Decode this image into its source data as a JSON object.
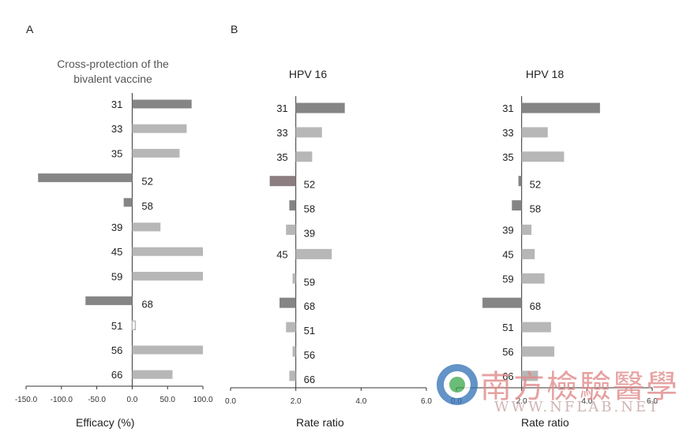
{
  "panels": {
    "a_label": "A",
    "b_label": "B"
  },
  "watermark": {
    "title": "南方檢驗醫學",
    "url": "WWW.NFLAB.NET"
  },
  "colors": {
    "dark_bar": "#858585",
    "light_bar": "#b7b7b7",
    "dark_bar_b": "#8c7d80",
    "axis": "#333333",
    "watermark": "#e08a8a"
  },
  "chart_data": [
    {
      "type": "bar",
      "orientation": "horizontal",
      "title": "Cross-protection of the bivalent vaccine",
      "title_lines": [
        "Cross-protection of the",
        "bivalent vaccine"
      ],
      "xlabel": "Efficacy (%)",
      "xlim": [
        -150,
        100
      ],
      "xticks": [
        "-150.0",
        "-100.0",
        "-50.0",
        "0.0",
        "50.0",
        "100.0"
      ],
      "baseline": 0,
      "categories": [
        "31",
        "33",
        "35",
        "52",
        "58",
        "39",
        "45",
        "59",
        "68",
        "51",
        "56",
        "66"
      ],
      "values": [
        84,
        77,
        67,
        -133,
        -12,
        40,
        100,
        100,
        -66,
        4,
        100,
        57
      ],
      "bar_style": [
        "dark",
        "light",
        "light",
        "dark",
        "dark",
        "light",
        "light",
        "light",
        "dark",
        "outline",
        "light",
        "light"
      ]
    },
    {
      "type": "bar",
      "orientation": "horizontal",
      "title": "HPV 16",
      "xlabel": "Rate ratio",
      "xlim": [
        0,
        6
      ],
      "xticks": [
        "0.0",
        "2.0",
        "4.0",
        "6.0"
      ],
      "baseline": 2,
      "categories": [
        "31",
        "33",
        "35",
        "52",
        "58",
        "39",
        "45",
        "59",
        "68",
        "51",
        "56",
        "66"
      ],
      "values": [
        3.5,
        2.8,
        2.5,
        1.2,
        1.8,
        1.7,
        3.1,
        1.9,
        1.5,
        1.7,
        1.9,
        1.8
      ],
      "bar_style": [
        "dark",
        "light",
        "light",
        "dark",
        "dark",
        "light",
        "light",
        "light",
        "dark",
        "light",
        "light",
        "light"
      ]
    },
    {
      "type": "bar",
      "orientation": "horizontal",
      "title": "HPV 18",
      "xlabel": "Rate ratio",
      "xlim": [
        0,
        6
      ],
      "xticks": [
        "0.0",
        "2.0",
        "4.0",
        "6.0"
      ],
      "baseline": 2,
      "categories": [
        "31",
        "33",
        "35",
        "52",
        "58",
        "39",
        "45",
        "59",
        "68",
        "51",
        "56",
        "66"
      ],
      "values": [
        4.4,
        2.8,
        3.3,
        1.9,
        1.7,
        2.3,
        2.4,
        2.7,
        0.8,
        2.9,
        3.0,
        2.5
      ],
      "bar_style": [
        "dark",
        "light",
        "light",
        "dark",
        "dark",
        "light",
        "light",
        "light",
        "dark",
        "light",
        "light",
        "light"
      ]
    }
  ]
}
